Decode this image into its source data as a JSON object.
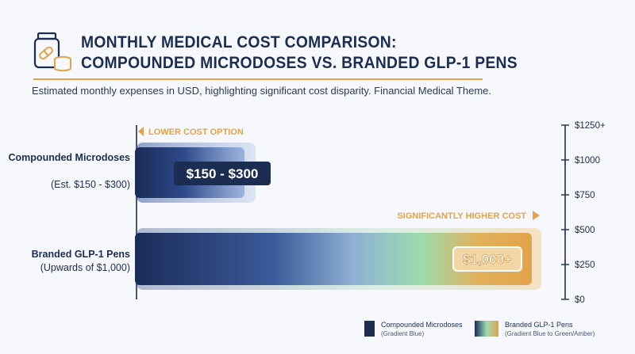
{
  "header": {
    "title_line1": "MONTHLY MEDICAL COST COMPARISON:",
    "title_line2": "COMPOUNDED MICRODOSES VS. BRANDED GLP-1 PENS",
    "subtitle": "Estimated monthly expenses in USD, highlighting significant cost disparity. Financial Medical Theme.",
    "icon": "medicine-bottle-coins-icon"
  },
  "colors": {
    "navy": "#1c2d52",
    "blue": "#2d4a8a",
    "green": "#8ed3a2",
    "amber": "#e2a34a",
    "background": "#f6f8fb"
  },
  "chart_data": {
    "type": "bar",
    "orientation": "horizontal",
    "categories": [
      {
        "name": "Compounded Microdoses",
        "sublabel": "(Est. $150 - $300)"
      },
      {
        "name": "Branded GLP-1 Pens",
        "sublabel": "(Upwards of $1,000)"
      }
    ],
    "values": [
      {
        "low": 150,
        "high": 300
      },
      {
        "low": 1000,
        "high": 1000
      }
    ],
    "data_labels": [
      "$150 - $300",
      "$1,000+"
    ],
    "annotations": [
      {
        "text": "LOWER COST OPTION",
        "arrow": "left"
      },
      {
        "text": "SIGNIFICANTLY HIGHER COST",
        "arrow": "right"
      }
    ],
    "axis": {
      "ticks": [
        0,
        250,
        500,
        750,
        1000,
        1250
      ],
      "tick_labels": [
        "$0",
        "$250",
        "$500",
        "$750",
        "$1000",
        "$1250+"
      ],
      "range": [
        0,
        1250
      ],
      "position": "right"
    },
    "legend": {
      "placement": "bottom-right",
      "entries": [
        {
          "name": "Compounded Microdoses",
          "note": "(Gradient Blue)"
        },
        {
          "name": "Branded GLP-1 Pens",
          "note": "(Gradient Blue to Green/Amber)"
        }
      ]
    }
  }
}
